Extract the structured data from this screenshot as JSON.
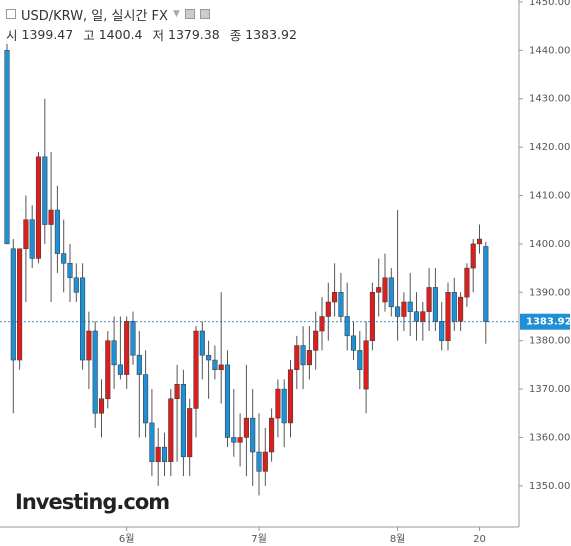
{
  "header": {
    "title": "USD/KRW, 일, 실시간 FX",
    "open_label": "시",
    "high_label": "고",
    "low_label": "저",
    "close_label": "종"
  },
  "logo": "Investing.com",
  "chart_data": {
    "type": "candlestick",
    "categories": [
      null,
      null,
      null,
      null,
      null,
      null,
      null,
      null,
      null,
      null,
      null,
      null,
      null,
      null,
      null,
      null,
      null,
      null,
      null,
      "6월",
      null,
      null,
      null,
      null,
      null,
      null,
      null,
      null,
      null,
      null,
      null,
      null,
      null,
      null,
      null,
      null,
      null,
      null,
      null,
      null,
      "7월",
      null,
      null,
      null,
      null,
      null,
      null,
      null,
      null,
      null,
      null,
      null,
      null,
      null,
      null,
      null,
      null,
      null,
      null,
      null,
      null,
      null,
      "8월",
      null,
      null,
      null,
      null,
      null,
      null,
      null,
      null,
      null,
      null,
      null,
      null,
      "20",
      null
    ],
    "series": [
      {
        "up_color": "#d9201f",
        "down_color": "#1f8fd6",
        "open": [
          1440,
          1399,
          1376,
          1399,
          1405,
          1397,
          1418,
          1404,
          1407,
          1398,
          1396,
          1393,
          1393,
          1376,
          1382,
          1365,
          1368,
          1380,
          1375,
          1373,
          1384,
          1377,
          1373,
          1363,
          1355,
          1358,
          1355,
          1368,
          1371,
          1356,
          1366,
          1382,
          1377,
          1376,
          1374,
          1375,
          1360,
          1359,
          1360,
          1364,
          1357,
          1353,
          1357,
          1364,
          1370,
          1363,
          1374,
          1379,
          1375,
          1378,
          1382,
          1385,
          1388,
          1390,
          1385,
          1381,
          1378,
          1370,
          1380,
          1390,
          1388,
          1393,
          1387,
          1385,
          1388,
          1386,
          1384,
          1386,
          1391,
          1384,
          1380,
          1390,
          1384,
          1389,
          1395,
          1400,
          1399.47
        ],
        "high": [
          1442,
          1401,
          1399,
          1410,
          1408,
          1419,
          1430,
          1419,
          1412,
          1405,
          1400,
          1396,
          1396,
          1386,
          1384,
          1372,
          1382,
          1385,
          1385,
          1385,
          1386,
          1382,
          1378,
          1370,
          1362,
          1361,
          1370,
          1375,
          1374,
          1368,
          1383,
          1384,
          1380,
          1379,
          1390,
          1378,
          1370,
          1365,
          1375,
          1370,
          1365,
          1362,
          1366,
          1372,
          1372,
          1376,
          1381,
          1383,
          1383,
          1386,
          1389,
          1392,
          1396,
          1394,
          1392,
          1384,
          1382,
          1384,
          1392,
          1397,
          1398,
          1395,
          1407,
          1390,
          1394,
          1390,
          1388,
          1395,
          1395,
          1388,
          1392,
          1393,
          1390,
          1396,
          1401,
          1404,
          1400.4
        ],
        "low": [
          1400,
          1365,
          1374,
          1388,
          1395,
          1396,
          1400,
          1388,
          1394,
          1390,
          1388,
          1388,
          1374,
          1370,
          1362,
          1360,
          1366,
          1370,
          1372,
          1370,
          1375,
          1360,
          1360,
          1352,
          1350,
          1352,
          1352,
          1355,
          1352,
          1352,
          1360,
          1372,
          1368,
          1372,
          1367,
          1358,
          1356,
          1354,
          1352,
          1350,
          1348,
          1350,
          1355,
          1360,
          1358,
          1360,
          1370,
          1370,
          1372,
          1374,
          1378,
          1380,
          1385,
          1384,
          1378,
          1376,
          1370,
          1365,
          1378,
          1385,
          1386,
          1385,
          1380,
          1382,
          1381,
          1380,
          1380,
          1382,
          1382,
          1378,
          1378,
          1382,
          1382,
          1387,
          1390,
          1398,
          1379.38
        ],
        "close": [
          1400,
          1376,
          1399,
          1405,
          1397,
          1418,
          1404,
          1407,
          1398,
          1396,
          1393,
          1390,
          1376,
          1382,
          1365,
          1368,
          1380,
          1375,
          1373,
          1384,
          1377,
          1373,
          1363,
          1355,
          1358,
          1355,
          1368,
          1371,
          1356,
          1366,
          1382,
          1377,
          1376,
          1374,
          1375,
          1360,
          1359,
          1360,
          1364,
          1357,
          1353,
          1357,
          1364,
          1370,
          1363,
          1374,
          1379,
          1375,
          1378,
          1382,
          1385,
          1388,
          1390,
          1385,
          1381,
          1378,
          1374,
          1380,
          1390,
          1391,
          1393,
          1387,
          1385,
          1388,
          1386,
          1384,
          1386,
          1391,
          1384,
          1380,
          1390,
          1384,
          1389,
          1395,
          1400,
          1401,
          1383.92
        ]
      }
    ],
    "ylim": [
      1341.5,
      1450.4
    ],
    "yticks": [
      {
        "value": 1350,
        "label": "1350.00"
      },
      {
        "value": 1360,
        "label": "1360.00"
      },
      {
        "value": 1370,
        "label": "1370.00"
      },
      {
        "value": 1380,
        "label": "1380.00"
      },
      {
        "value": 1390,
        "label": "1390.00"
      },
      {
        "value": 1400,
        "label": "1400.00"
      },
      {
        "value": 1410,
        "label": "1410.00"
      },
      {
        "value": 1420,
        "label": "1420.00"
      },
      {
        "value": 1430,
        "label": "1430.00"
      },
      {
        "value": 1440,
        "label": "1440.00"
      },
      {
        "value": 1450,
        "label": "1450.00"
      }
    ],
    "grid": false
  }
}
